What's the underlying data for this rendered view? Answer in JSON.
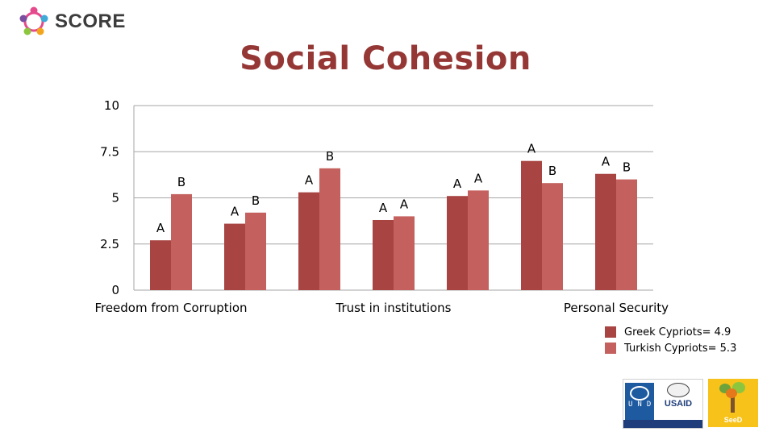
{
  "header": {
    "logo_text": "SCORE",
    "logo_icon": "score-people-circle-icon"
  },
  "slide": {
    "title": "Social Cohesion"
  },
  "legend": [
    {
      "label": "Greek Cypriots= 4.9",
      "color": "#a84442"
    },
    {
      "label": "Turkish Cypriots= 5.3",
      "color": "#c4615e"
    }
  ],
  "chart_data": {
    "type": "bar",
    "title": "",
    "xlabel": "",
    "ylabel": "",
    "ylim": [
      0,
      10
    ],
    "y_ticks": [
      "0",
      "2.5",
      "5",
      "7.5",
      "10"
    ],
    "y_tick_values": [
      0,
      2.5,
      5,
      7.5,
      10
    ],
    "grid": true,
    "legend_position": "bottom-right",
    "category_labels": [
      {
        "text": "Freedom from Corruption",
        "group": 0
      },
      {
        "text": "Trust in institutions",
        "group": 3
      },
      {
        "text": "Personal Security",
        "group": 6
      }
    ],
    "series": [
      {
        "name": "Greek Cypriots= 4.9",
        "color": "#a84442",
        "values": [
          2.7,
          3.6,
          5.3,
          3.8,
          5.1,
          7.0,
          6.3
        ],
        "labels": [
          "A",
          "A",
          "A",
          "A",
          "A",
          "A",
          "A"
        ]
      },
      {
        "name": "Turkish Cypriots= 5.3",
        "color": "#c4615e",
        "values": [
          5.2,
          4.2,
          6.6,
          4.0,
          5.4,
          5.8,
          6.0
        ],
        "labels": [
          "B",
          "B",
          "B",
          "A",
          "A",
          "B",
          "B"
        ]
      }
    ]
  },
  "sponsors": {
    "undp_letters": "UNDP",
    "usaid_name": "USAID",
    "seed_name": "SeeD"
  }
}
